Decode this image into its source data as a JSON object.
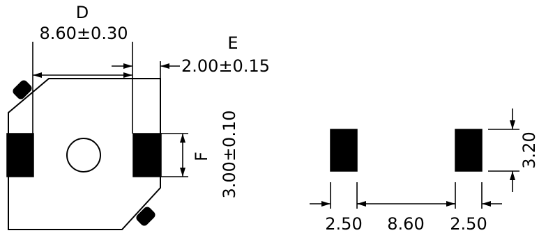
{
  "left_view": {
    "label_d": "D",
    "value_d": "8.60±0.30",
    "label_e": "E",
    "value_e": "2.00±0.15",
    "label_f": "F",
    "value_f": "3.00±0.10"
  },
  "right_view": {
    "pad_width_left": "2.50",
    "pad_spacing": "8.60",
    "pad_width_right": "2.50",
    "pad_height": "3.20"
  }
}
